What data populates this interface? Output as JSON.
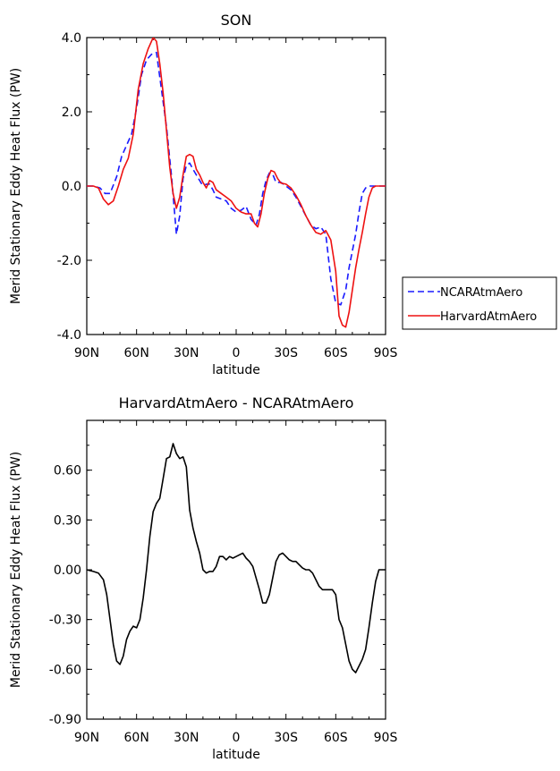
{
  "chart_data": [
    {
      "type": "line",
      "title": "SON",
      "xlabel": "latitude",
      "ylabel": "Merid Stationary Eddy Heat Flux (PW)",
      "xlim": [
        90,
        -90
      ],
      "ylim": [
        -4.0,
        4.0
      ],
      "xticks": [
        90,
        60,
        30,
        0,
        -30,
        -60,
        -90
      ],
      "xtick_labels": [
        "90N",
        "60N",
        "30N",
        "0",
        "30S",
        "60S",
        "90S"
      ],
      "yticks": [
        -4.0,
        -2.0,
        0.0,
        2.0,
        4.0
      ],
      "ytick_labels": [
        "-4.0",
        "-2.0",
        "0.0",
        "2.0",
        "4.0"
      ],
      "legend_position": "right",
      "series": [
        {
          "name": "NCARAtmAero",
          "color": "#1a1aff",
          "style": "dashed",
          "x": [
            90,
            86,
            82,
            79,
            76,
            72,
            69,
            66,
            63,
            60,
            57,
            54,
            51,
            48,
            45,
            42,
            39,
            36,
            34,
            32,
            30,
            28,
            26,
            24,
            22,
            20,
            18,
            16,
            14,
            12,
            9,
            6,
            3,
            0,
            -3,
            -6,
            -9,
            -12,
            -14,
            -16,
            -18,
            -20,
            -22,
            -24,
            -27,
            -30,
            -33,
            -36,
            -39,
            -42,
            -45,
            -48,
            -51,
            -54,
            -57,
            -60,
            -63,
            -66,
            -68,
            -70,
            -72,
            -74,
            -76,
            -78,
            -80,
            -82,
            -84,
            -86,
            -88,
            -90
          ],
          "values": [
            0.0,
            0.0,
            -0.05,
            -0.2,
            -0.2,
            0.25,
            0.8,
            1.1,
            1.4,
            2.1,
            3.0,
            3.4,
            3.55,
            3.6,
            2.6,
            1.6,
            0.3,
            -1.3,
            -0.8,
            0.2,
            0.55,
            0.62,
            0.45,
            0.3,
            0.15,
            0.0,
            0.05,
            0.05,
            -0.1,
            -0.3,
            -0.35,
            -0.4,
            -0.6,
            -0.7,
            -0.65,
            -0.55,
            -0.9,
            -1.05,
            -0.75,
            -0.2,
            0.15,
            0.35,
            0.32,
            0.1,
            0.1,
            0.0,
            -0.1,
            -0.3,
            -0.55,
            -0.8,
            -1.05,
            -1.15,
            -1.1,
            -1.3,
            -2.5,
            -3.15,
            -3.2,
            -2.8,
            -2.2,
            -1.75,
            -1.3,
            -0.7,
            -0.2,
            -0.05,
            0.0,
            0.0,
            0.0,
            0.0,
            0.0,
            0.0
          ]
        },
        {
          "name": "HarvardAtmAero",
          "color": "#ee1111",
          "style": "solid",
          "x": [
            90,
            86,
            83,
            80,
            77,
            74,
            71,
            68,
            65,
            62,
            59,
            56,
            53,
            50,
            48,
            46,
            44,
            42,
            40,
            38,
            36,
            34,
            32,
            30,
            28,
            26,
            24,
            22,
            20,
            18,
            16,
            14,
            12,
            9,
            6,
            3,
            0,
            -3,
            -6,
            -9,
            -11,
            -13,
            -15,
            -17,
            -19,
            -21,
            -23,
            -25,
            -27,
            -30,
            -33,
            -36,
            -39,
            -42,
            -45,
            -48,
            -51,
            -54,
            -57,
            -60,
            -62,
            -64,
            -66,
            -68,
            -70,
            -72,
            -74,
            -76,
            -78,
            -80,
            -82,
            -84,
            -86,
            -88,
            -90
          ],
          "values": [
            0.0,
            0.0,
            -0.05,
            -0.35,
            -0.5,
            -0.4,
            0.0,
            0.45,
            0.75,
            1.4,
            2.6,
            3.3,
            3.7,
            4.0,
            3.9,
            3.3,
            2.5,
            1.5,
            0.5,
            -0.2,
            -0.6,
            -0.3,
            0.3,
            0.8,
            0.85,
            0.8,
            0.45,
            0.3,
            0.1,
            -0.05,
            0.15,
            0.1,
            -0.1,
            -0.2,
            -0.3,
            -0.4,
            -0.6,
            -0.7,
            -0.75,
            -0.75,
            -1.0,
            -1.1,
            -0.75,
            -0.2,
            0.2,
            0.42,
            0.38,
            0.2,
            0.08,
            0.05,
            -0.05,
            -0.25,
            -0.5,
            -0.8,
            -1.05,
            -1.25,
            -1.3,
            -1.2,
            -1.45,
            -2.3,
            -3.5,
            -3.75,
            -3.8,
            -3.4,
            -2.8,
            -2.2,
            -1.7,
            -1.25,
            -0.75,
            -0.3,
            -0.05,
            0.0,
            0.0,
            0.0,
            0.0
          ]
        }
      ]
    },
    {
      "type": "line",
      "title": "HarvardAtmAero - NCARAtmAero",
      "xlabel": "latitude",
      "ylabel": "Merid Stationary Eddy Heat Flux (PW)",
      "xlim": [
        90,
        -90
      ],
      "ylim": [
        -0.9,
        0.9
      ],
      "xticks": [
        90,
        60,
        30,
        0,
        -30,
        -60,
        -90
      ],
      "xtick_labels": [
        "90N",
        "60N",
        "30N",
        "0",
        "30S",
        "60S",
        "90S"
      ],
      "yticks": [
        -0.9,
        -0.6,
        -0.3,
        0.0,
        0.3,
        0.6
      ],
      "ytick_labels": [
        "-0.90",
        "-0.60",
        "-0.30",
        "0.00",
        "0.30",
        "0.60"
      ],
      "series": [
        {
          "name": "",
          "color": "#000000",
          "style": "solid",
          "x": [
            90,
            86,
            83,
            80,
            78,
            76,
            74,
            72,
            70,
            68,
            66,
            64,
            62,
            60,
            58,
            56,
            54,
            52,
            50,
            48,
            46,
            44,
            42,
            40,
            38,
            36,
            34,
            32,
            30,
            28,
            26,
            24,
            22,
            20,
            18,
            16,
            14,
            12,
            10,
            8,
            6,
            4,
            2,
            0,
            -2,
            -4,
            -6,
            -8,
            -10,
            -12,
            -14,
            -16,
            -18,
            -20,
            -22,
            -24,
            -26,
            -28,
            -30,
            -32,
            -34,
            -36,
            -38,
            -40,
            -42,
            -44,
            -46,
            -48,
            -50,
            -52,
            -54,
            -56,
            -58,
            -60,
            -62,
            -64,
            -66,
            -68,
            -70,
            -72,
            -74,
            -76,
            -78,
            -80,
            -82,
            -84,
            -86,
            -88,
            -90
          ],
          "values": [
            0.0,
            -0.01,
            -0.02,
            -0.06,
            -0.15,
            -0.3,
            -0.45,
            -0.55,
            -0.57,
            -0.52,
            -0.42,
            -0.37,
            -0.34,
            -0.35,
            -0.3,
            -0.17,
            0.0,
            0.2,
            0.35,
            0.4,
            0.43,
            0.55,
            0.67,
            0.68,
            0.76,
            0.7,
            0.67,
            0.68,
            0.62,
            0.36,
            0.25,
            0.17,
            0.1,
            0.0,
            -0.02,
            -0.01,
            -0.01,
            0.02,
            0.08,
            0.08,
            0.06,
            0.08,
            0.07,
            0.08,
            0.09,
            0.1,
            0.07,
            0.05,
            0.02,
            -0.05,
            -0.12,
            -0.2,
            -0.2,
            -0.15,
            -0.05,
            0.05,
            0.09,
            0.1,
            0.08,
            0.06,
            0.05,
            0.05,
            0.03,
            0.01,
            0.0,
            0.0,
            -0.02,
            -0.06,
            -0.1,
            -0.12,
            -0.12,
            -0.12,
            -0.12,
            -0.15,
            -0.3,
            -0.35,
            -0.45,
            -0.55,
            -0.6,
            -0.62,
            -0.58,
            -0.54,
            -0.48,
            -0.35,
            -0.2,
            -0.07,
            0.0,
            0.0,
            0.0
          ]
        }
      ]
    }
  ]
}
